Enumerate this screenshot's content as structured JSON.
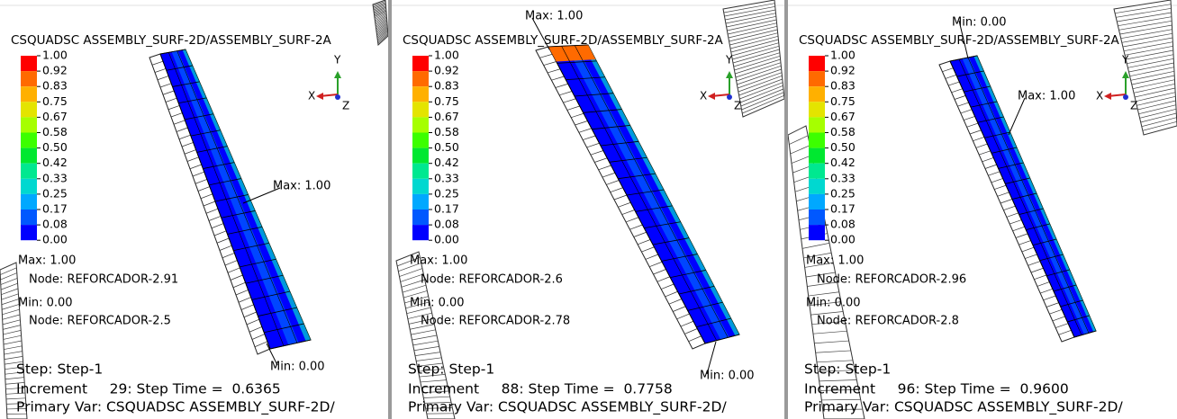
{
  "legend": {
    "labels": [
      "1.00",
      "0.92",
      "0.83",
      "0.75",
      "0.67",
      "0.58",
      "0.50",
      "0.42",
      "0.33",
      "0.25",
      "0.17",
      "0.08",
      "0.00"
    ],
    "colors": [
      "#ff0000",
      "#ff6a00",
      "#ffb000",
      "#e4e400",
      "#a6ff00",
      "#3cff00",
      "#00e830",
      "#00e890",
      "#00d8d0",
      "#00a8ff",
      "#0058ff",
      "#0000ff"
    ]
  },
  "triad": {
    "x": "X",
    "y": "Y",
    "z": "Z"
  },
  "panels": [
    {
      "title": "CSQUADSC ASSEMBLY_SURF-2D/ASSEMBLY_SURF-2A",
      "max_label": "Max: 1.00",
      "max_node": "Node: REFORCADOR-2.91",
      "min_label": "Min: 0.00",
      "min_node": "Node: REFORCADOR-2.5",
      "max_marker": "Max: 1.00",
      "min_marker": "Min: 0.00",
      "step": "Step: Step-1",
      "increment": "Increment     29: Step Time =  0.6365",
      "primary_var": "Primary Var: CSQUADSC ASSEMBLY_SURF-2D/"
    },
    {
      "title": "CSQUADSC ASSEMBLY_SURF-2D/ASSEMBLY_SURF-2A",
      "max_label": "Max: 1.00",
      "max_node": "Node: REFORCADOR-2.6",
      "min_label": "Min: 0.00",
      "min_node": "Node: REFORCADOR-2.78",
      "max_marker": "Max: 1.00",
      "min_marker": "Min: 0.00",
      "step": "Step: Step-1",
      "increment": "Increment     88: Step Time =  0.7758",
      "primary_var": "Primary Var: CSQUADSC ASSEMBLY_SURF-2D/"
    },
    {
      "title": "CSQUADSC ASSEMBLY_SURF-2D/ASSEMBLY_SURF-2A",
      "max_label": "Max: 1.00",
      "max_node": "Node: REFORCADOR-2.96",
      "min_label": "Min: 0.00",
      "min_node": "Node: REFORCADOR-2.8",
      "max_marker": "Max: 1.00",
      "min_marker": "Min: 0.00",
      "step": "Step: Step-1",
      "increment": "Increment     96: Step Time =  0.9600",
      "primary_var": "Primary Var: CSQUADSC ASSEMBLY_SURF-2D/"
    }
  ]
}
